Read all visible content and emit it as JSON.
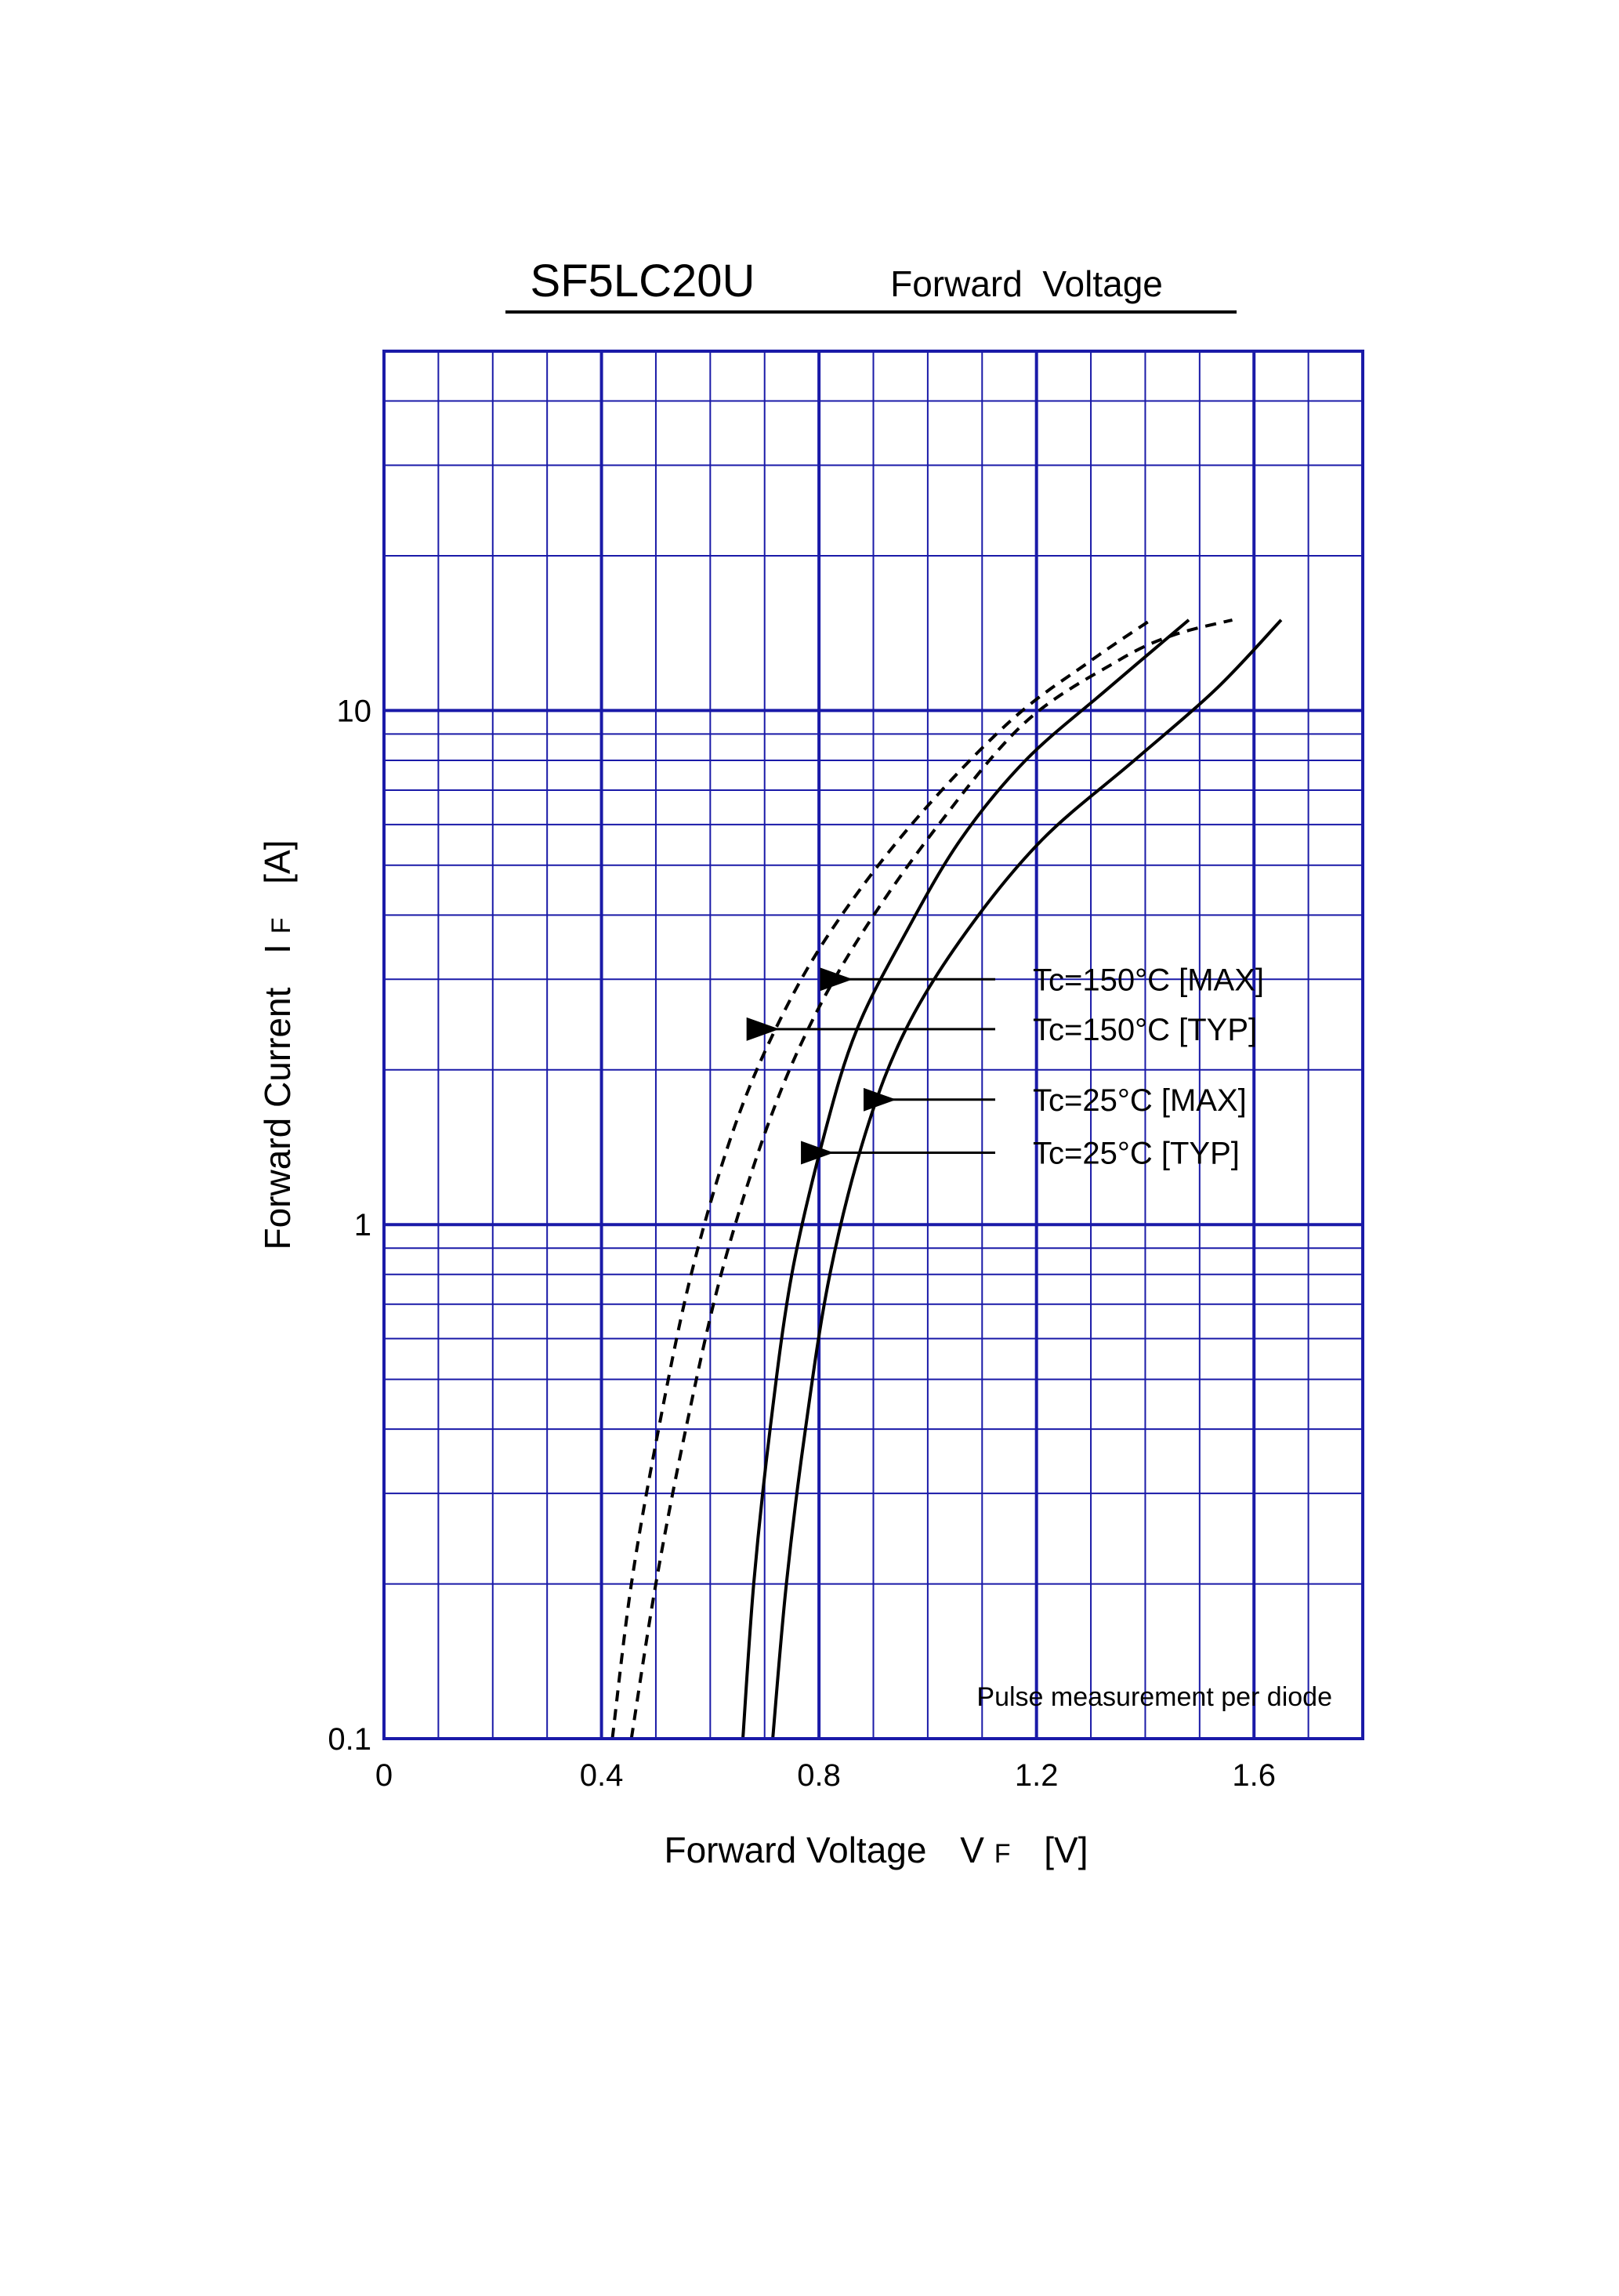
{
  "chart_data": {
    "type": "line",
    "title_part_number": "SF5LC20U",
    "title_subject": "Forward  Voltage",
    "xlabel": "Forward Voltage",
    "xlabel_symbol": "V",
    "xlabel_subscript": "F",
    "xlabel_unit": "[V]",
    "ylabel": "Forward Current",
    "ylabel_symbol": "I",
    "ylabel_subscript": "F",
    "ylabel_unit": "[A]",
    "x_scale": "linear",
    "y_scale": "log",
    "xlim": [
      0,
      1.8
    ],
    "ylim": [
      0.1,
      50
    ],
    "x_ticks": [
      {
        "value": 0,
        "label": "0"
      },
      {
        "value": 0.4,
        "label": "0.4"
      },
      {
        "value": 0.8,
        "label": "0.8"
      },
      {
        "value": 1.2,
        "label": "1.2"
      },
      {
        "value": 1.6,
        "label": "1.6"
      }
    ],
    "y_ticks": [
      {
        "value": 0.1,
        "label": "0.1"
      },
      {
        "value": 1,
        "label": "1"
      },
      {
        "value": 10,
        "label": "10"
      }
    ],
    "grid": true,
    "grid_color": "#1a1aa8",
    "annotation": "Pulse measurement per diode",
    "series": [
      {
        "name": "Tc=150°C [TYP]",
        "style": "dashed",
        "x": [
          0.42,
          0.455,
          0.505,
          0.565,
          0.64,
          0.72,
          0.82,
          0.97,
          1.15,
          1.3,
          1.41
        ],
        "y": [
          0.1,
          0.2,
          0.4,
          0.8,
          1.5,
          2.4,
          3.7,
          6.0,
          9.5,
          12.5,
          15
        ]
      },
      {
        "name": "Tc=150°C [MAX]",
        "style": "dashed",
        "x": [
          0.455,
          0.5,
          0.555,
          0.62,
          0.7,
          0.78,
          0.88,
          1.02,
          1.18,
          1.35,
          1.45,
          1.56
        ],
        "y": [
          0.1,
          0.2,
          0.4,
          0.8,
          1.5,
          2.4,
          3.7,
          6.0,
          9.5,
          12.5,
          14,
          15
        ]
      },
      {
        "name": "Tc=25°C [TYP]",
        "style": "solid",
        "x": [
          0.66,
          0.68,
          0.71,
          0.75,
          0.81,
          0.87,
          0.96,
          1.06,
          1.18,
          1.33,
          1.48
        ],
        "y": [
          0.1,
          0.2,
          0.4,
          0.8,
          1.5,
          2.4,
          3.7,
          5.6,
          8.0,
          11.0,
          15
        ]
      },
      {
        "name": "Tc=25°C [MAX]",
        "style": "solid",
        "x": [
          0.715,
          0.74,
          0.775,
          0.82,
          0.885,
          0.96,
          1.07,
          1.21,
          1.38,
          1.53,
          1.65
        ],
        "y": [
          0.1,
          0.2,
          0.4,
          0.8,
          1.5,
          2.4,
          3.7,
          5.6,
          8.0,
          11.0,
          15
        ]
      }
    ],
    "callouts": [
      {
        "label": "Tc=150°C [MAX]",
        "x": 0.845,
        "y": 3.0
      },
      {
        "label": "Tc=150°C [TYP]",
        "x": 0.71,
        "y": 2.4
      },
      {
        "label": "Tc=25°C [MAX]",
        "x": 0.925,
        "y": 1.75
      },
      {
        "label": "Tc=25°C [TYP]",
        "x": 0.81,
        "y": 1.38
      }
    ]
  }
}
